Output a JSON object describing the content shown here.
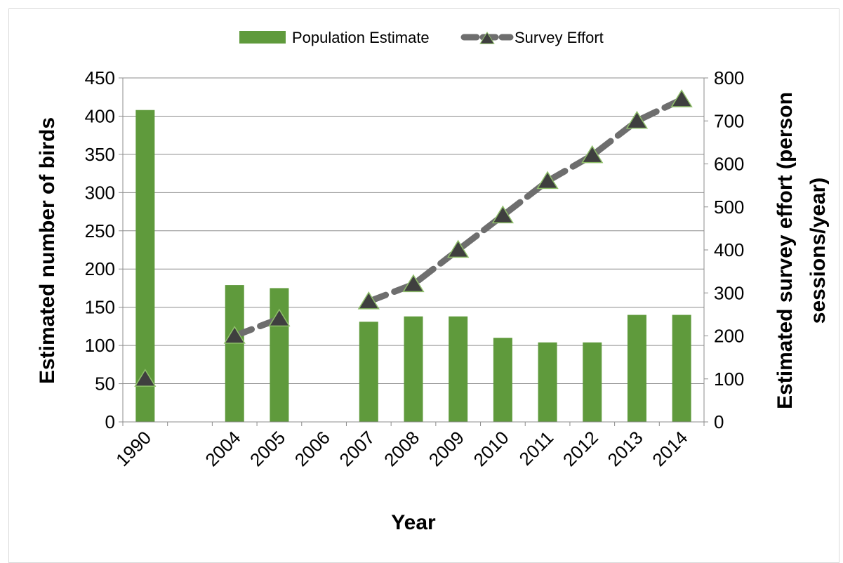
{
  "chart_data": {
    "type": "bar",
    "categories": [
      "1990",
      "",
      "2004",
      "2005",
      "2006",
      "2007",
      "2008",
      "2009",
      "2010",
      "2011",
      "2012",
      "2013",
      "2014"
    ],
    "series": [
      {
        "name": "Population Estimate",
        "type": "bar",
        "axis": "left",
        "color": "#5f9a3c",
        "values": [
          408,
          null,
          179,
          175,
          null,
          131,
          138,
          138,
          110,
          104,
          104,
          140,
          140
        ]
      },
      {
        "name": "Survey Effort",
        "type": "line",
        "axis": "right",
        "line_color": "#6e6e6e",
        "marker_color": "#3f3f3f",
        "marker": "triangle",
        "values": [
          100,
          null,
          200,
          240,
          null,
          280,
          320,
          400,
          480,
          560,
          620,
          700,
          750
        ]
      }
    ],
    "xlabel": "Year",
    "ylabel": "Estimated  number of birds",
    "ylabel_right_lines": [
      "Estimated  survey effort (person",
      "sessions/year)"
    ],
    "ylim": [
      0,
      450
    ],
    "yticks": [
      0,
      50,
      100,
      150,
      200,
      250,
      300,
      350,
      400,
      450
    ],
    "ylim_right": [
      0,
      800
    ],
    "yticks_right": [
      0,
      100,
      200,
      300,
      400,
      500,
      600,
      700,
      800
    ],
    "grid": true,
    "legend_position": "top-center"
  }
}
